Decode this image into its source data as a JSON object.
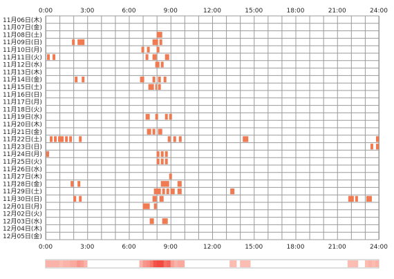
{
  "chart_data": {
    "type": "heatmap",
    "title": "",
    "xlabel": "",
    "ylabel": "",
    "x_ticks": [
      "0:00",
      "3:00",
      "6:00",
      "9:00",
      "12:00",
      "15:00",
      "18:00",
      "21:00",
      "24:00"
    ],
    "xlim": [
      0,
      24
    ],
    "grid": true,
    "colors": {
      "block": "#f07a52",
      "density_low": "#ffeee6",
      "density_high": "#f24a3e",
      "grid": "#999999",
      "background": "#ffffff"
    },
    "rows": [
      {
        "label": "11月06日(木)",
        "blocks": []
      },
      {
        "label": "11月07日(金)",
        "blocks": []
      },
      {
        "label": "11月08日(土)",
        "blocks": [
          [
            8.0,
            8.4
          ]
        ]
      },
      {
        "label": "11月09日(日)",
        "blocks": [
          [
            1.9,
            2.1
          ],
          [
            2.3,
            2.8
          ],
          [
            7.7,
            8.1
          ],
          [
            8.2,
            8.4
          ]
        ]
      },
      {
        "label": "11月10日(月)",
        "blocks": [
          [
            6.9,
            7.1
          ],
          [
            7.3,
            7.5
          ],
          [
            8.0,
            8.2
          ]
        ]
      },
      {
        "label": "11月11日(火)",
        "blocks": [
          [
            0.1,
            0.3
          ],
          [
            0.5,
            0.7
          ],
          [
            7.2,
            7.4
          ],
          [
            7.7,
            8.0
          ],
          [
            8.6,
            8.9
          ]
        ]
      },
      {
        "label": "11月12日(水)",
        "blocks": [
          [
            7.9,
            8.2
          ],
          [
            8.3,
            8.5
          ]
        ]
      },
      {
        "label": "11月13日(木)",
        "blocks": []
      },
      {
        "label": "11月14日(金)",
        "blocks": [
          [
            2.1,
            2.3
          ],
          [
            2.6,
            2.8
          ],
          [
            6.8,
            7.1
          ],
          [
            7.7,
            7.9
          ],
          [
            8.1,
            8.3
          ],
          [
            8.5,
            8.7
          ]
        ]
      },
      {
        "label": "11月15日(土)",
        "blocks": [
          [
            7.4,
            7.8
          ],
          [
            7.9,
            8.0
          ],
          [
            8.1,
            8.3
          ]
        ]
      },
      {
        "label": "11月16日(日)",
        "blocks": []
      },
      {
        "label": "11月17日(月)",
        "blocks": []
      },
      {
        "label": "11月18日(火)",
        "blocks": []
      },
      {
        "label": "11月19日(水)",
        "blocks": [
          [
            7.2,
            7.5
          ],
          [
            7.9,
            8.1
          ],
          [
            8.6,
            8.8
          ],
          [
            8.9,
            9.1
          ]
        ]
      },
      {
        "label": "11月20日(木)",
        "blocks": []
      },
      {
        "label": "11月21日(金)",
        "blocks": [
          [
            7.3,
            7.6
          ],
          [
            7.7,
            7.9
          ],
          [
            8.1,
            8.4
          ]
        ]
      },
      {
        "label": "11月22日(土)",
        "blocks": [
          [
            0.3,
            0.5
          ],
          [
            0.6,
            0.8
          ],
          [
            0.9,
            1.3
          ],
          [
            1.4,
            1.6
          ],
          [
            1.7,
            1.9
          ],
          [
            2.4,
            2.6
          ],
          [
            8.8,
            9.0
          ],
          [
            9.2,
            9.4
          ],
          [
            9.6,
            9.8
          ],
          [
            14.2,
            14.6
          ],
          [
            23.8,
            24.0
          ]
        ]
      },
      {
        "label": "11月23日(日)",
        "blocks": [
          [
            23.4,
            23.6
          ],
          [
            23.8,
            24.0
          ]
        ]
      },
      {
        "label": "11月24日(月)",
        "blocks": [
          [
            0.05,
            0.25
          ],
          [
            8.0,
            8.2
          ],
          [
            8.3,
            8.5
          ],
          [
            8.6,
            8.8
          ]
        ]
      },
      {
        "label": "11月25日(火)",
        "blocks": [
          [
            8.0,
            8.2
          ],
          [
            8.3,
            8.5
          ],
          [
            8.6,
            8.8
          ]
        ]
      },
      {
        "label": "11月26日(水)",
        "blocks": []
      },
      {
        "label": "11月27日(木)",
        "blocks": [
          [
            8.9,
            9.1
          ]
        ]
      },
      {
        "label": "11月28日(金)",
        "blocks": [
          [
            1.8,
            2.0
          ],
          [
            2.3,
            2.5
          ],
          [
            8.3,
            8.9
          ],
          [
            9.5,
            9.8
          ]
        ]
      },
      {
        "label": "11月29日(土)",
        "blocks": [
          [
            7.8,
            8.3
          ],
          [
            8.4,
            8.6
          ],
          [
            8.7,
            8.9
          ],
          [
            9.0,
            9.3
          ],
          [
            9.5,
            9.8
          ],
          [
            13.3,
            13.6
          ]
        ]
      },
      {
        "label": "11月30日(日)",
        "blocks": [
          [
            2.0,
            2.2
          ],
          [
            2.4,
            2.6
          ],
          [
            7.7,
            8.0
          ],
          [
            8.2,
            8.5
          ],
          [
            21.8,
            22.2
          ],
          [
            22.3,
            22.5
          ],
          [
            23.1,
            23.5
          ]
        ]
      },
      {
        "label": "12月01日(月)",
        "blocks": [
          [
            7.0,
            7.5
          ],
          [
            7.8,
            8.0
          ]
        ]
      },
      {
        "label": "12月02日(火)",
        "blocks": []
      },
      {
        "label": "12月03日(水)",
        "blocks": [
          [
            7.5,
            7.8
          ],
          [
            8.4,
            8.8
          ]
        ]
      },
      {
        "label": "12月04日(木)",
        "blocks": []
      },
      {
        "label": "12月05日(金)",
        "blocks": []
      }
    ]
  }
}
